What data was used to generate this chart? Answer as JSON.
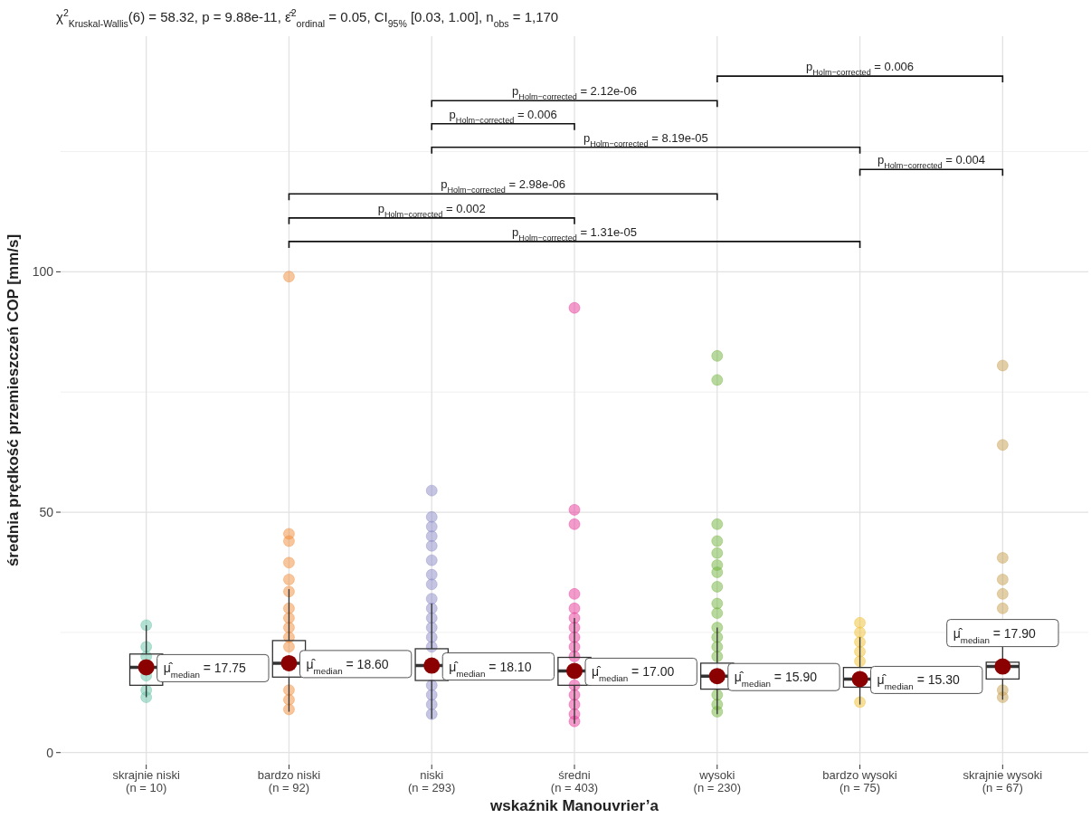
{
  "chart_data": {
    "type": "box",
    "subtitle": "χ$^{2}$$_{Kruskal-Wallis}$(6) = 58.32, p = 9.88e-11, ε̂$^{2}$$_{ordinal}$ = 0.05, CI$_{95%}$ [0.03, 1.00], n$_{obs}$ = 1,170",
    "xlabel": "wskaźnik Manouvrier’a",
    "ylabel": "średnia prędkość przemieszczeń COP [mm/s]",
    "categories": [
      "skrajnie niski\n(n = 10)",
      "bardzo niski\n(n = 92)",
      "niski\n(n = 293)",
      "średni\n(n = 403)",
      "wysoki\n(n = 230)",
      "bardzo wysoki\n(n = 75)",
      "skrajnie wysoki\n(n = 67)"
    ],
    "ylim": [
      -2.5,
      149
    ],
    "yticks": [
      0,
      {
        "value": 25,
        "label": null
      },
      50,
      {
        "value": 75,
        "label": null
      },
      100,
      {
        "value": 125,
        "label": null
      }
    ],
    "grid": true,
    "marker": "circle",
    "annotations": [
      "p$_{Holm−corrected}$ = 0.006",
      "p$_{Holm−corrected}$ = 2.12e-06",
      "p$_{Holm−corrected}$ = 0.006",
      "p$_{Holm−corrected}$ = 8.19e-05",
      "p$_{Holm−corrected}$ = 0.004",
      "p$_{Holm−corrected}$ = 2.98e-06",
      "p$_{Holm−corrected}$ = 0.002",
      "p$_{Holm−corrected}$ = 1.31e-05"
    ],
    "series": [
      {
        "type": "scatter",
        "color": "#66c2a5",
        "x": [
          "skrajnie niski\n(n = 10)",
          "skrajnie niski\n(n = 10)",
          "skrajnie niski\n(n = 10)",
          "skrajnie niski\n(n = 10)",
          "skrajnie niski\n(n = 10)",
          "skrajnie niski\n(n = 10)"
        ],
        "values": [
          26.5,
          22,
          20,
          16,
          13,
          11.5
        ]
      },
      {
        "type": "scatter",
        "color": "#f28e3c",
        "x": [
          "bardzo niski\n(n = 92)",
          "bardzo niski\n(n = 92)",
          "bardzo niski\n(n = 92)",
          "bardzo niski\n(n = 92)",
          "bardzo niski\n(n = 92)",
          "bardzo niski\n(n = 92)",
          "bardzo niski\n(n = 92)",
          "bardzo niski\n(n = 92)",
          "bardzo niski\n(n = 92)",
          "bardzo niski\n(n = 92)",
          "bardzo niski\n(n = 92)",
          "bardzo niski\n(n = 92)",
          "bardzo niski\n(n = 92)",
          "bardzo niski\n(n = 92)"
        ],
        "values": [
          99,
          45.5,
          44,
          39.5,
          36,
          33.5,
          30,
          28,
          26,
          24,
          22,
          13,
          11,
          9
        ]
      },
      {
        "type": "scatter",
        "color": "#8c8cc8",
        "x": [
          "niski\n(n = 293)",
          "niski\n(n = 293)",
          "niski\n(n = 293)",
          "niski\n(n = 293)",
          "niski\n(n = 293)",
          "niski\n(n = 293)",
          "niski\n(n = 293)",
          "niski\n(n = 293)",
          "niski\n(n = 293)",
          "niski\n(n = 293)",
          "niski\n(n = 293)",
          "niski\n(n = 293)",
          "niski\n(n = 293)",
          "niski\n(n = 293)",
          "niski\n(n = 293)",
          "niski\n(n = 293)",
          "niski\n(n = 293)",
          "niski\n(n = 293)"
        ],
        "values": [
          54.5,
          49,
          47,
          45,
          43,
          40,
          37,
          35,
          32,
          30,
          28,
          26,
          24,
          22,
          14,
          12,
          10,
          8
        ]
      },
      {
        "type": "scatter",
        "color": "#e8399a",
        "x": [
          "średni\n(n = 403)",
          "średni\n(n = 403)",
          "średni\n(n = 403)",
          "średni\n(n = 403)",
          "średni\n(n = 403)",
          "średni\n(n = 403)",
          "średni\n(n = 403)",
          "średni\n(n = 403)",
          "średni\n(n = 403)",
          "średni\n(n = 403)",
          "średni\n(n = 403)",
          "średni\n(n = 403)",
          "średni\n(n = 403)",
          "średni\n(n = 403)",
          "średni\n(n = 403)"
        ],
        "values": [
          92.5,
          50.5,
          47.5,
          33,
          30,
          28,
          26,
          24,
          22,
          20,
          14,
          12,
          10,
          8,
          6.5
        ]
      },
      {
        "type": "scatter",
        "color": "#72b33c",
        "x": [
          "wysoki\n(n = 230)",
          "wysoki\n(n = 230)",
          "wysoki\n(n = 230)",
          "wysoki\n(n = 230)",
          "wysoki\n(n = 230)",
          "wysoki\n(n = 230)",
          "wysoki\n(n = 230)",
          "wysoki\n(n = 230)",
          "wysoki\n(n = 230)",
          "wysoki\n(n = 230)",
          "wysoki\n(n = 230)",
          "wysoki\n(n = 230)",
          "wysoki\n(n = 230)",
          "wysoki\n(n = 230)",
          "wysoki\n(n = 230)",
          "wysoki\n(n = 230)",
          "wysoki\n(n = 230)"
        ],
        "values": [
          82.5,
          77.5,
          47.5,
          44,
          41.5,
          39,
          37.5,
          34.5,
          31,
          29,
          26,
          24,
          22,
          20,
          12,
          10,
          8.5
        ]
      },
      {
        "type": "scatter",
        "color": "#f0c030",
        "x": [
          "bardzo wysoki\n(n = 75)",
          "bardzo wysoki\n(n = 75)",
          "bardzo wysoki\n(n = 75)",
          "bardzo wysoki\n(n = 75)",
          "bardzo wysoki\n(n = 75)",
          "bardzo wysoki\n(n = 75)"
        ],
        "values": [
          27,
          25,
          23,
          21,
          19,
          10.5
        ]
      },
      {
        "type": "scatter",
        "color": "#c8a050",
        "x": [
          "skrajnie wysoki\n(n = 67)",
          "skrajnie wysoki\n(n = 67)",
          "skrajnie wysoki\n(n = 67)",
          "skrajnie wysoki\n(n = 67)",
          "skrajnie wysoki\n(n = 67)",
          "skrajnie wysoki\n(n = 67)",
          "skrajnie wysoki\n(n = 67)",
          "skrajnie wysoki\n(n = 67)"
        ],
        "values": [
          80.5,
          64,
          40.5,
          36,
          33,
          30,
          13,
          11.5
        ]
      },
      {
        "color": "#333333",
        "boxes": [
          {
            "low": 11.5,
            "q1": 14,
            "median": 17.75,
            "q3": 20.5,
            "high": 26.5
          },
          {
            "low": 8.5,
            "q1": 15.7,
            "median": 18.6,
            "q3": 23.3,
            "high": 34
          },
          {
            "low": 7,
            "q1": 15,
            "median": 18.1,
            "q3": 21.6,
            "high": 31
          },
          {
            "low": 6,
            "q1": 14,
            "median": 17,
            "q3": 19.8,
            "high": 28
          },
          {
            "low": 8,
            "q1": 13.2,
            "median": 15.9,
            "q3": 18.6,
            "high": 26
          },
          {
            "low": 10,
            "q1": 13.6,
            "median": 15.3,
            "q3": 17.7,
            "high": 24
          },
          {
            "low": 11,
            "q1": 15.3,
            "median": 17.9,
            "q3": 18.8,
            "high": 23
          }
        ]
      },
      {
        "type": "scatter",
        "color": "#8b0000",
        "x": [
          "skrajnie niski\n(n = 10)",
          "bardzo niski\n(n = 92)",
          "niski\n(n = 293)",
          "średni\n(n = 403)",
          "wysoki\n(n = 230)",
          "bardzo wysoki\n(n = 75)",
          "skrajnie wysoki\n(n = 67)"
        ],
        "values": [
          17.75,
          18.6,
          18.1,
          17,
          15.9,
          15.3,
          17.9
        ],
        "value_labels": [
          "μ̂$_{median}$ = 17.75",
          "μ̂$_{median}$ = 18.60",
          "μ̂$_{median}$ = 18.10",
          "μ̂$_{median}$ = 17.00",
          "μ̂$_{median}$ = 15.90",
          "μ̂$_{median}$ = 15.30",
          "μ̂$_{median}$ = 17.90"
        ]
      }
    ]
  }
}
